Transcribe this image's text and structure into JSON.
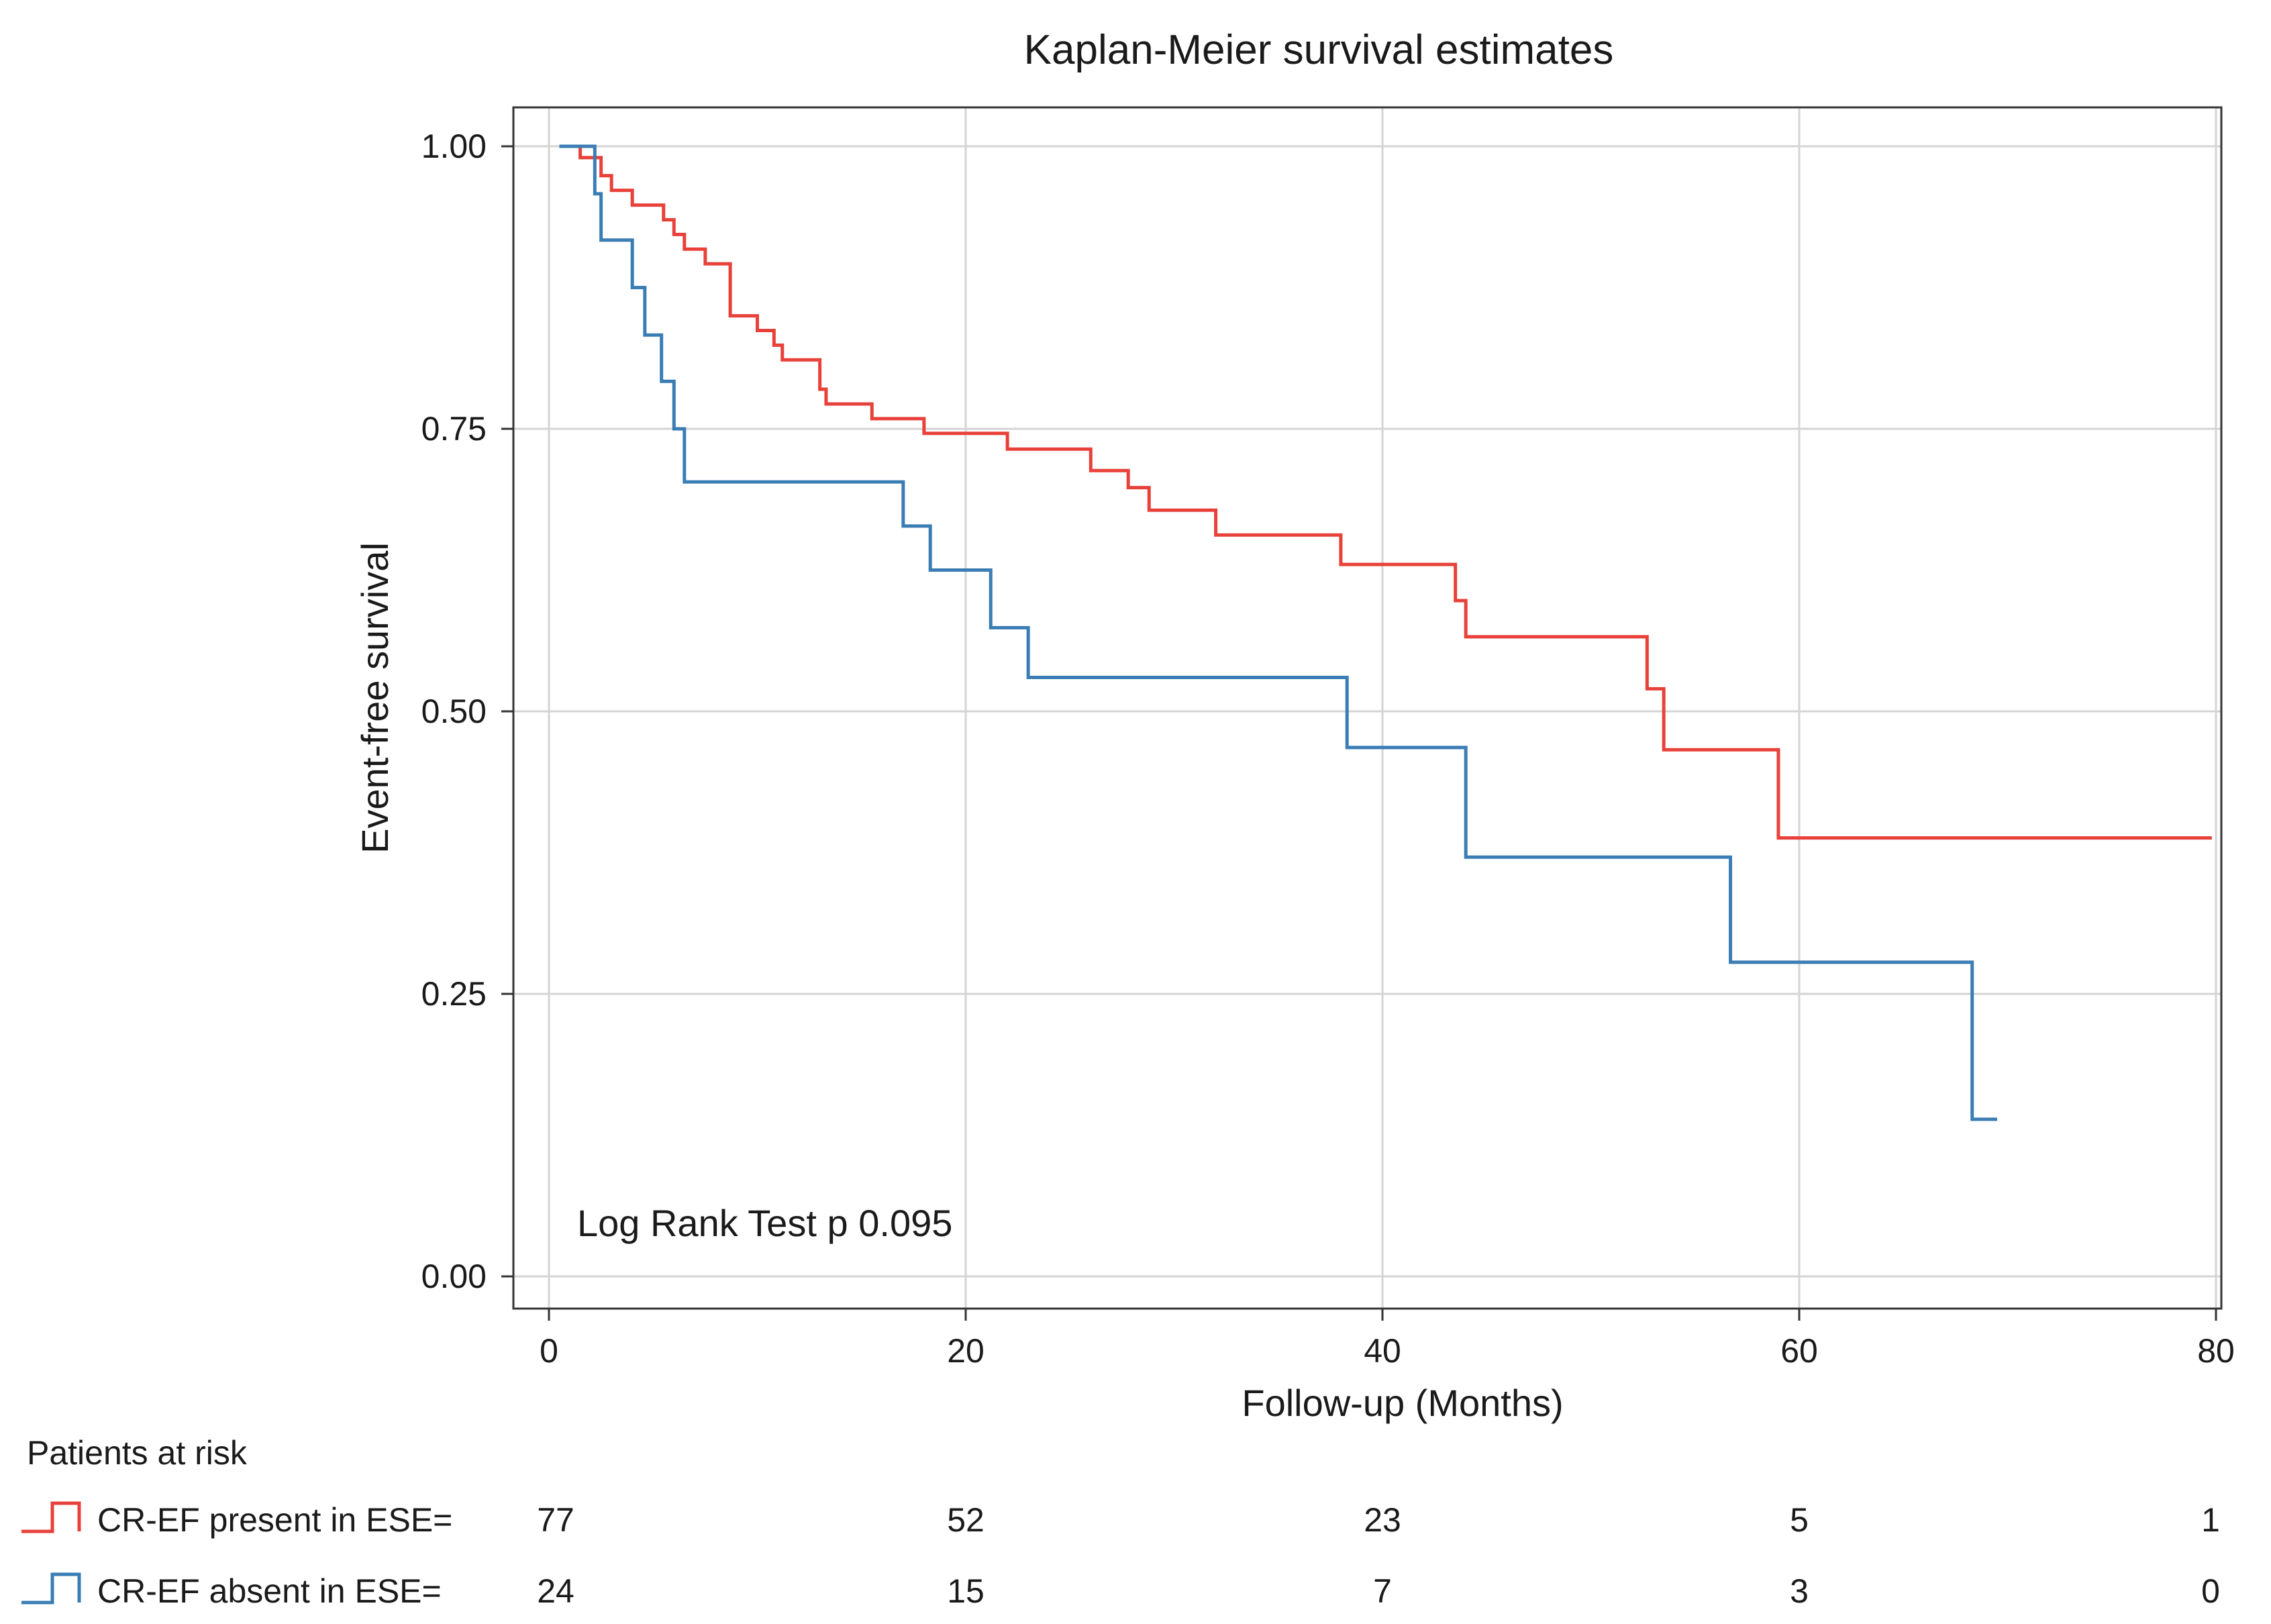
{
  "chart_data": {
    "type": "line",
    "subtype": "kaplan-meier",
    "title": "Kaplan-Meier survival estimates",
    "xlabel": "Follow-up (Months)",
    "ylabel": "Event-free survival",
    "xlim": [
      0,
      80
    ],
    "ylim": [
      0,
      1
    ],
    "x_ticks": [
      0,
      20,
      40,
      60,
      80
    ],
    "x_tick_labels": [
      "0",
      "20",
      "40",
      "60",
      "80"
    ],
    "y_ticks": [
      0,
      0.25,
      0.5,
      0.75,
      1.0
    ],
    "y_tick_labels": [
      "0.00",
      "0.25",
      "0.50",
      "0.75",
      "1.00"
    ],
    "grid": true,
    "annotation": "Log Rank Test p 0.095",
    "series": [
      {
        "name": "CR-EF present in ESE=",
        "color": "#e8413a",
        "steps": [
          [
            0.5,
            1.0
          ],
          [
            1.5,
            0.99
          ],
          [
            2.5,
            0.974
          ],
          [
            3.0,
            0.961
          ],
          [
            4.0,
            0.948
          ],
          [
            5.5,
            0.935
          ],
          [
            6.0,
            0.922
          ],
          [
            6.5,
            0.909
          ],
          [
            7.5,
            0.896
          ],
          [
            8.7,
            0.85
          ],
          [
            10.0,
            0.837
          ],
          [
            10.8,
            0.824
          ],
          [
            11.2,
            0.811
          ],
          [
            13.0,
            0.785
          ],
          [
            13.3,
            0.772
          ],
          [
            15.5,
            0.759
          ],
          [
            18.0,
            0.746
          ],
          [
            22.0,
            0.732
          ],
          [
            26.0,
            0.713
          ],
          [
            27.8,
            0.698
          ],
          [
            28.8,
            0.678
          ],
          [
            32.0,
            0.656
          ],
          [
            38.0,
            0.63
          ],
          [
            43.5,
            0.598
          ],
          [
            44.0,
            0.566
          ],
          [
            52.7,
            0.52
          ],
          [
            53.5,
            0.466
          ],
          [
            59.0,
            0.388
          ]
        ],
        "end_x": 79.8
      },
      {
        "name": "CR-EF absent in ESE=",
        "color": "#3a7db5",
        "steps": [
          [
            0.5,
            1.0
          ],
          [
            2.2,
            0.958
          ],
          [
            2.5,
            0.917
          ],
          [
            4.0,
            0.875
          ],
          [
            4.6,
            0.833
          ],
          [
            5.4,
            0.792
          ],
          [
            6.0,
            0.75
          ],
          [
            6.5,
            0.703
          ],
          [
            17.0,
            0.664
          ],
          [
            18.3,
            0.625
          ],
          [
            21.2,
            0.574
          ],
          [
            23.0,
            0.53
          ],
          [
            38.3,
            0.468
          ],
          [
            44.0,
            0.371
          ],
          [
            56.7,
            0.278
          ],
          [
            68.3,
            0.139
          ]
        ],
        "end_x": 69.5
      }
    ]
  },
  "risk_table": {
    "header": "Patients at risk",
    "time_points": [
      0,
      20,
      40,
      60,
      80
    ],
    "rows": [
      {
        "label": "CR-EF present in ESE=",
        "color": "#e8413a",
        "counts": [
          "77",
          "52",
          "23",
          "5",
          "1"
        ]
      },
      {
        "label": "CR-EF absent in ESE=",
        "color": "#3a7db5",
        "counts": [
          "24",
          "15",
          "7",
          "3",
          "0"
        ]
      }
    ]
  }
}
